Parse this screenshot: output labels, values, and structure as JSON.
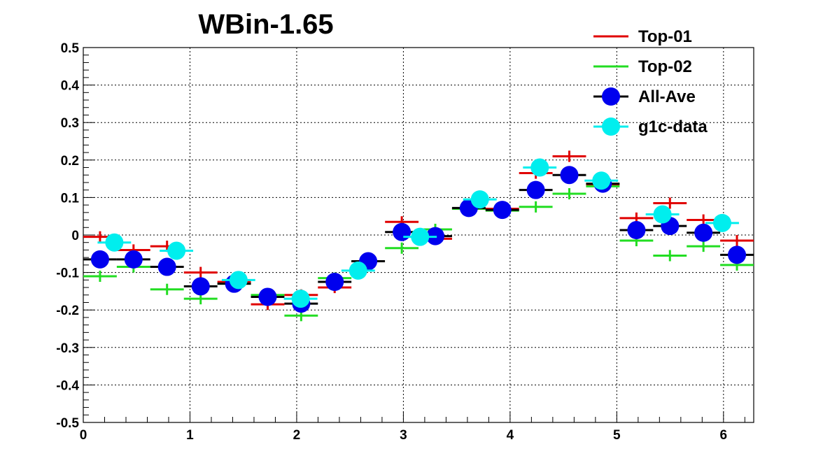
{
  "chart_data": {
    "type": "scatter",
    "title": "WBin-1.65",
    "xlabel": "",
    "ylabel": "",
    "xlim": [
      0,
      6.2832
    ],
    "ylim": [
      -0.5,
      0.5
    ],
    "grid": true,
    "legend_position": "top-right",
    "x_ticks": [
      "0",
      "1",
      "2",
      "3",
      "4",
      "5",
      "6"
    ],
    "y_ticks": [
      "-0.5",
      "-0.4",
      "-0.3",
      "-0.2",
      "-0.1",
      "0",
      "0.1",
      "0.2",
      "0.3",
      "0.4",
      "0.5"
    ],
    "series": [
      {
        "name": "Top-01",
        "color": "#e00000",
        "style": "error-bar",
        "x": [
          0.157,
          0.471,
          0.785,
          1.1,
          1.414,
          1.728,
          2.042,
          2.356,
          2.67,
          2.985,
          3.299,
          3.613,
          3.927,
          4.241,
          4.555,
          4.869,
          5.184,
          5.498,
          5.812,
          6.126
        ],
        "y": [
          -0.005,
          -0.04,
          -0.03,
          -0.1,
          -0.125,
          -0.185,
          -0.16,
          -0.14,
          -0.07,
          0.035,
          -0.01,
          0.07,
          0.07,
          0.165,
          0.21,
          0.135,
          0.045,
          0.085,
          0.04,
          -0.015
        ],
        "xerr": 0.157,
        "yerr": 0.015
      },
      {
        "name": "Top-02",
        "color": "#22dd22",
        "style": "error-bar",
        "x": [
          0.157,
          0.471,
          0.785,
          1.1,
          1.414,
          1.728,
          2.042,
          2.356,
          2.67,
          2.985,
          3.299,
          3.613,
          3.927,
          4.241,
          4.555,
          4.869,
          5.184,
          5.498,
          5.812,
          6.126
        ],
        "y": [
          -0.11,
          -0.085,
          -0.145,
          -0.17,
          -0.13,
          -0.16,
          -0.215,
          -0.115,
          -0.07,
          -0.035,
          0.015,
          0.07,
          0.065,
          0.075,
          0.11,
          0.13,
          -0.015,
          -0.055,
          -0.03,
          -0.08
        ],
        "xerr": 0.157,
        "yerr": 0.015
      },
      {
        "name": "All-Ave",
        "color": "#0000ee",
        "style": "marker",
        "x": [
          0.157,
          0.471,
          0.785,
          1.1,
          1.414,
          1.728,
          2.042,
          2.356,
          2.67,
          2.985,
          3.299,
          3.613,
          3.927,
          4.241,
          4.555,
          4.869,
          5.184,
          5.498,
          5.812,
          6.126
        ],
        "y": [
          -0.065,
          -0.065,
          -0.085,
          -0.137,
          -0.13,
          -0.165,
          -0.183,
          -0.125,
          -0.07,
          0.008,
          -0.003,
          0.072,
          0.067,
          0.12,
          0.16,
          0.137,
          0.013,
          0.024,
          0.006,
          -0.053
        ],
        "xerr": 0.157
      },
      {
        "name": "g1c-data",
        "color": "#00eeee",
        "style": "marker",
        "x": [
          0.291,
          0.873,
          1.455,
          2.037,
          2.576,
          3.156,
          3.717,
          4.278,
          4.855,
          5.428,
          5.988
        ],
        "y": [
          -0.02,
          -0.042,
          -0.12,
          -0.17,
          -0.095,
          -0.005,
          0.095,
          0.18,
          0.145,
          0.055,
          0.032
        ],
        "xerr": 0.157
      }
    ]
  }
}
